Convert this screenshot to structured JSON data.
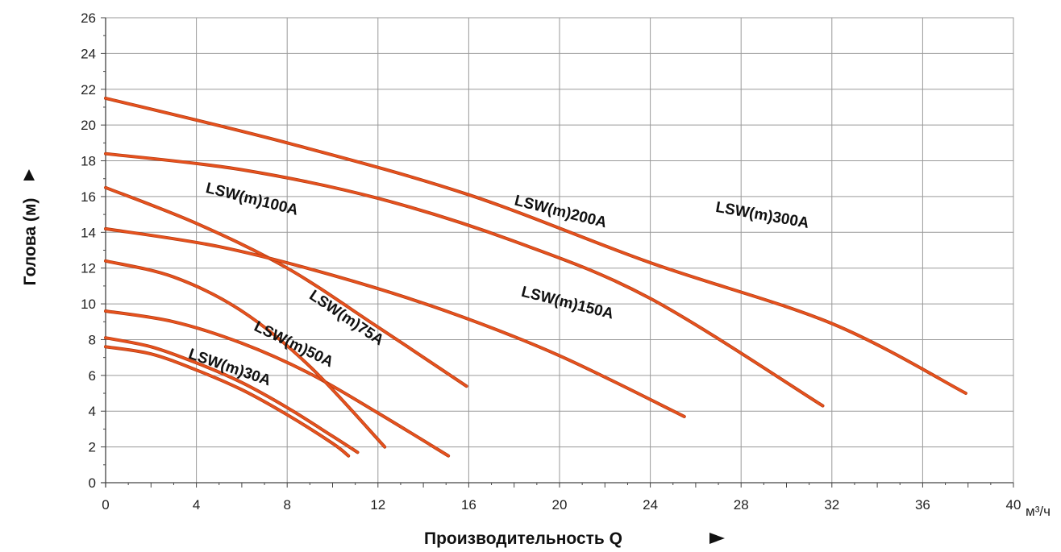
{
  "chart_data": {
    "type": "line",
    "xlabel": "Производительность Q",
    "ylabel": "Голова (м)",
    "x_unit": "м³/ч",
    "xlim": [
      0,
      40
    ],
    "ylim": [
      0,
      26
    ],
    "x_ticks": [
      0,
      4,
      8,
      12,
      16,
      20,
      24,
      28,
      32,
      36,
      40
    ],
    "y_ticks": [
      0,
      2,
      4,
      6,
      8,
      10,
      12,
      14,
      16,
      18,
      20,
      22,
      24,
      26
    ],
    "x_tick_labels": [
      "0",
      "4",
      "8",
      "12",
      "16",
      "20",
      "24",
      "28",
      "32",
      "36",
      "40"
    ],
    "y_tick_labels": [
      "0",
      "2",
      "4",
      "6",
      "8",
      "10",
      "12",
      "14",
      "16",
      "18",
      "20",
      "22",
      "24",
      "26"
    ],
    "grid": true,
    "line_color": "#e8521e",
    "series": [
      {
        "name": "LSW(m)30A",
        "x": [
          0,
          2,
          4,
          6,
          8,
          10,
          10.7
        ],
        "y": [
          7.6,
          7.2,
          6.3,
          5.2,
          3.8,
          2.2,
          1.5
        ]
      },
      {
        "name": "LSW(m)50A",
        "x": [
          0,
          2,
          4,
          6,
          8,
          10,
          11.1
        ],
        "y": [
          8.1,
          7.6,
          6.7,
          5.6,
          4.2,
          2.6,
          1.7
        ]
      },
      {
        "name": "LSW(m)75A",
        "x": [
          0,
          3,
          6,
          9,
          12,
          15.1
        ],
        "y": [
          9.6,
          9.0,
          7.8,
          6.1,
          3.9,
          1.5
        ]
      },
      {
        "name": "LSW(m)100A",
        "x": [
          0,
          4,
          8,
          12,
          15.9
        ],
        "y": [
          16.5,
          14.5,
          12.0,
          8.7,
          5.4
        ]
      },
      {
        "name": "LSW(m)75A-b",
        "x": [
          0,
          3,
          6,
          9,
          12.3
        ],
        "y": [
          12.4,
          11.5,
          9.6,
          6.5,
          2.0
        ]
      },
      {
        "name": "LSW(m)150A",
        "x": [
          0,
          5,
          10,
          15,
          20,
          25.5
        ],
        "y": [
          14.2,
          13.2,
          11.6,
          9.6,
          7.1,
          3.7
        ]
      },
      {
        "name": "LSW(m)200A",
        "x": [
          0,
          6,
          12,
          18,
          24,
          31.6
        ],
        "y": [
          18.4,
          17.5,
          15.9,
          13.5,
          10.3,
          4.3
        ]
      },
      {
        "name": "LSW(m)300A",
        "x": [
          0,
          8,
          16,
          24,
          32,
          37.9
        ],
        "y": [
          21.5,
          19.0,
          16.1,
          12.3,
          8.9,
          5.0
        ]
      }
    ],
    "curve_labels": [
      {
        "text": "LSW(m)100A",
        "x": 6.4,
        "y": 15.6,
        "angle": 14
      },
      {
        "text": "LSW(m)200A",
        "x": 20.0,
        "y": 14.9,
        "angle": 14
      },
      {
        "text": "LSW(m)300A",
        "x": 28.9,
        "y": 14.7,
        "angle": 10
      },
      {
        "text": "LSW(m)150A",
        "x": 20.3,
        "y": 9.8,
        "angle": 14
      },
      {
        "text": "LSW(m)75A",
        "x": 10.5,
        "y": 9.0,
        "angle": 34
      },
      {
        "text": "LSW(m)50A",
        "x": 8.2,
        "y": 7.5,
        "angle": 26
      },
      {
        "text": "LSW(m)30A",
        "x": 5.4,
        "y": 6.2,
        "angle": 19
      }
    ]
  }
}
